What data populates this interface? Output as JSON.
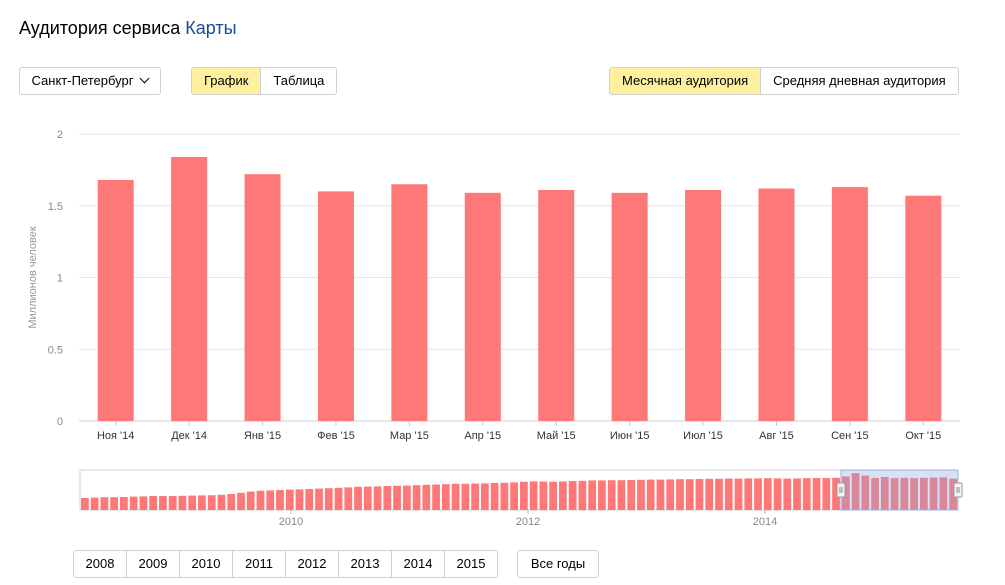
{
  "header": {
    "title_prefix": "Аудитория сервиса",
    "service": "Карты"
  },
  "controls": {
    "city": "Санкт-Петербург",
    "view_tabs": [
      {
        "label": "График",
        "active": true
      },
      {
        "label": "Таблица",
        "active": false
      }
    ],
    "audience_tabs": [
      {
        "label": "Месячная аудитория",
        "active": true
      },
      {
        "label": "Средняя дневная аудитория",
        "active": false
      }
    ]
  },
  "chart_data": {
    "type": "bar",
    "ylabel": "Миллионов человек",
    "ylim": [
      0,
      2
    ],
    "yticks": [
      "0",
      "0.5",
      "1",
      "1.5",
      "2"
    ],
    "grid": true,
    "color": "#ff7878",
    "categories": [
      "Ноя '14",
      "Дек '14",
      "Янв '15",
      "Фев '15",
      "Мар '15",
      "Апр '15",
      "Май '15",
      "Июн '15",
      "Июл '15",
      "Авг '15",
      "Сен '15",
      "Окт '15"
    ],
    "values": [
      1.68,
      1.84,
      1.72,
      1.6,
      1.65,
      1.59,
      1.61,
      1.59,
      1.61,
      1.62,
      1.63,
      1.57
    ]
  },
  "overview": {
    "year_labels": [
      "2010",
      "2012",
      "2014"
    ],
    "values": [
      0.6,
      0.62,
      0.64,
      0.64,
      0.65,
      0.67,
      0.68,
      0.7,
      0.7,
      0.7,
      0.71,
      0.72,
      0.73,
      0.74,
      0.76,
      0.8,
      0.86,
      0.92,
      0.96,
      0.98,
      1.0,
      1.02,
      1.03,
      1.05,
      1.07,
      1.09,
      1.11,
      1.13,
      1.16,
      1.17,
      1.18,
      1.2,
      1.21,
      1.22,
      1.24,
      1.26,
      1.27,
      1.29,
      1.31,
      1.31,
      1.32,
      1.33,
      1.35,
      1.36,
      1.38,
      1.41,
      1.43,
      1.42,
      1.41,
      1.43,
      1.45,
      1.46,
      1.48,
      1.48,
      1.49,
      1.49,
      1.5,
      1.51,
      1.52,
      1.52,
      1.53,
      1.54,
      1.54,
      1.55,
      1.56,
      1.56,
      1.57,
      1.57,
      1.58,
      1.58,
      1.59,
      1.58,
      1.57,
      1.58,
      1.59,
      1.6,
      1.6,
      1.61,
      1.68,
      1.84,
      1.72,
      1.6,
      1.65,
      1.59,
      1.61,
      1.59,
      1.61,
      1.62,
      1.63,
      1.57
    ]
  },
  "years": [
    "2008",
    "2009",
    "2010",
    "2011",
    "2012",
    "2013",
    "2014",
    "2015"
  ],
  "all_years": "Все годы"
}
